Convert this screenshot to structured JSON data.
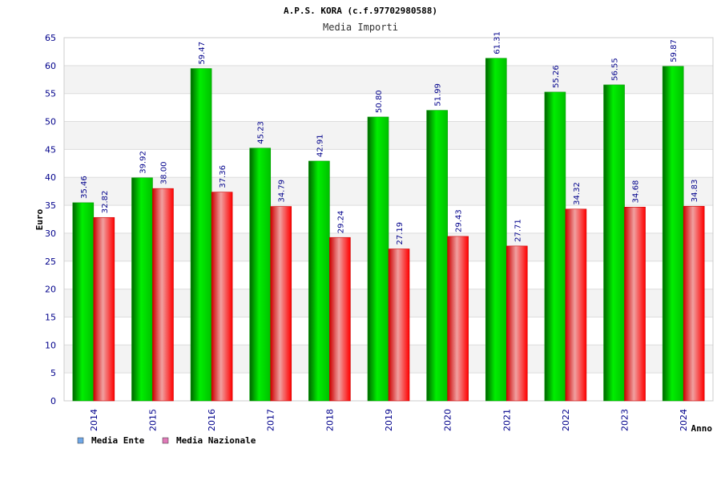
{
  "chart_data": {
    "type": "bar",
    "title": "A.P.S. KORA (c.f.97702980588)",
    "subtitle": "Media Importi",
    "xlabel": "Anno",
    "ylabel": "Euro",
    "ylim": [
      0,
      65
    ],
    "ytick_step": 5,
    "grid": true,
    "legend_position": "bottom-left",
    "categories": [
      "2014",
      "2015",
      "2016",
      "2017",
      "2018",
      "2019",
      "2020",
      "2021",
      "2022",
      "2023",
      "2024"
    ],
    "series": [
      {
        "name": "Media Ente",
        "color": "#00cc00",
        "legend_color": "#6fa8e8",
        "values": [
          35.46,
          39.92,
          59.47,
          45.23,
          42.91,
          50.8,
          51.99,
          61.31,
          55.26,
          56.55,
          59.87
        ],
        "labels": [
          "35.46",
          "39.92",
          "59.47",
          "45.23",
          "42.91",
          "50.80",
          "51.99",
          "61.31",
          "55.26",
          "56.55",
          "59.87"
        ]
      },
      {
        "name": "Media Nazionale",
        "color": "#ff0000",
        "legend_color": "#e07ab8",
        "values": [
          32.82,
          38.0,
          37.36,
          34.79,
          29.24,
          27.19,
          29.43,
          27.71,
          34.32,
          34.68,
          34.83
        ],
        "labels": [
          "32.82",
          "38.00",
          "37.36",
          "34.79",
          "29.24",
          "27.19",
          "29.43",
          "27.71",
          "34.32",
          "34.68",
          "34.83"
        ]
      }
    ]
  }
}
